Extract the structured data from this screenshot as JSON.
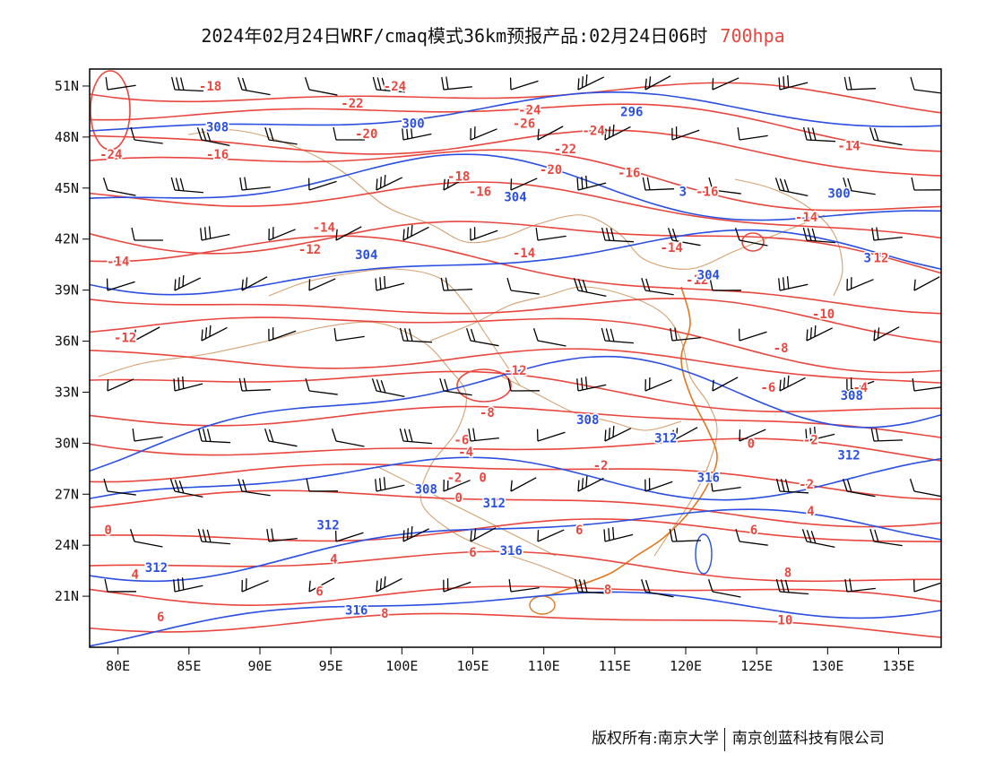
{
  "title": {
    "main": "2024年02月24日WRF/cmaq模式36km预报产品:02月24日06时",
    "level": "700hpa"
  },
  "axes": {
    "x_ticks": [
      "80E",
      "85E",
      "90E",
      "95E",
      "100E",
      "105E",
      "110E",
      "115E",
      "120E",
      "125E",
      "130E",
      "135E"
    ],
    "y_ticks": [
      "21N",
      "24N",
      "27N",
      "30N",
      "33N",
      "36N",
      "39N",
      "42N",
      "45N",
      "48N",
      "51N"
    ],
    "lon_range": [
      78,
      138
    ],
    "lat_range": [
      18,
      52
    ]
  },
  "colors": {
    "temperature": "#e8473f",
    "height": "#2b4fe0",
    "boundary": "#d4a070",
    "coast": "#e07820",
    "barb": "#000000",
    "frame": "#000000"
  },
  "temperature_labels": [
    {
      "lon": 86.5,
      "lat": 51.0,
      "text": "-18"
    },
    {
      "lon": 96.5,
      "lat": 50.0,
      "text": "-22"
    },
    {
      "lon": 99.5,
      "lat": 51.0,
      "text": "-24"
    },
    {
      "lon": 79.5,
      "lat": 47.0,
      "text": "-24"
    },
    {
      "lon": 87.0,
      "lat": 47.0,
      "text": "-16"
    },
    {
      "lon": 97.5,
      "lat": 48.2,
      "text": "-20"
    },
    {
      "lon": 109.0,
      "lat": 49.6,
      "text": "-24"
    },
    {
      "lon": 108.6,
      "lat": 48.8,
      "text": "-26"
    },
    {
      "lon": 113.5,
      "lat": 48.4,
      "text": "-24"
    },
    {
      "lon": 111.5,
      "lat": 47.3,
      "text": "-22"
    },
    {
      "lon": 110.5,
      "lat": 46.1,
      "text": "-20"
    },
    {
      "lon": 104.0,
      "lat": 45.7,
      "text": "-18"
    },
    {
      "lon": 116.0,
      "lat": 45.9,
      "text": "-16"
    },
    {
      "lon": 105.5,
      "lat": 44.8,
      "text": "-16"
    },
    {
      "lon": 121.5,
      "lat": 44.8,
      "text": "-16"
    },
    {
      "lon": 131.5,
      "lat": 47.5,
      "text": "-14"
    },
    {
      "lon": 128.5,
      "lat": 43.3,
      "text": "-14"
    },
    {
      "lon": 94.5,
      "lat": 42.7,
      "text": "-14"
    },
    {
      "lon": 108.6,
      "lat": 41.2,
      "text": "-14"
    },
    {
      "lon": 119.0,
      "lat": 41.5,
      "text": "-14"
    },
    {
      "lon": 93.5,
      "lat": 41.4,
      "text": "-12"
    },
    {
      "lon": 80.0,
      "lat": 40.7,
      "text": "-14"
    },
    {
      "lon": 120.8,
      "lat": 39.6,
      "text": "-12"
    },
    {
      "lon": 133.5,
      "lat": 40.9,
      "text": "-12"
    },
    {
      "lon": 80.5,
      "lat": 36.2,
      "text": "-12"
    },
    {
      "lon": 108.0,
      "lat": 34.3,
      "text": "-12"
    },
    {
      "lon": 129.7,
      "lat": 37.6,
      "text": "-10"
    },
    {
      "lon": 126.7,
      "lat": 35.6,
      "text": "-8"
    },
    {
      "lon": 106.0,
      "lat": 31.8,
      "text": "-8"
    },
    {
      "lon": 125.8,
      "lat": 33.3,
      "text": "-6"
    },
    {
      "lon": 132.3,
      "lat": 33.3,
      "text": "-4"
    },
    {
      "lon": 104.2,
      "lat": 30.2,
      "text": "-6"
    },
    {
      "lon": 104.5,
      "lat": 29.5,
      "text": "-4"
    },
    {
      "lon": 128.8,
      "lat": 30.2,
      "text": "-2"
    },
    {
      "lon": 103.7,
      "lat": 28.0,
      "text": "-2"
    },
    {
      "lon": 105.7,
      "lat": 28.0,
      "text": "0"
    },
    {
      "lon": 124.6,
      "lat": 30.0,
      "text": "0"
    },
    {
      "lon": 114.0,
      "lat": 28.7,
      "text": "-2"
    },
    {
      "lon": 128.5,
      "lat": 27.6,
      "text": "-2"
    },
    {
      "lon": 104.0,
      "lat": 26.8,
      "text": "0"
    },
    {
      "lon": 79.3,
      "lat": 24.9,
      "text": "0"
    },
    {
      "lon": 128.8,
      "lat": 26.0,
      "text": "4"
    },
    {
      "lon": 124.8,
      "lat": 24.9,
      "text": "6"
    },
    {
      "lon": 112.5,
      "lat": 24.9,
      "text": "6"
    },
    {
      "lon": 95.2,
      "lat": 23.2,
      "text": "4"
    },
    {
      "lon": 105.0,
      "lat": 23.6,
      "text": "6"
    },
    {
      "lon": 81.2,
      "lat": 22.3,
      "text": "4"
    },
    {
      "lon": 94.2,
      "lat": 21.3,
      "text": "6"
    },
    {
      "lon": 114.5,
      "lat": 21.4,
      "text": "8"
    },
    {
      "lon": 127.2,
      "lat": 22.4,
      "text": "8"
    },
    {
      "lon": 98.8,
      "lat": 20.0,
      "text": "8"
    },
    {
      "lon": 83.0,
      "lat": 19.8,
      "text": "6"
    },
    {
      "lon": 127.0,
      "lat": 19.6,
      "text": "10"
    }
  ],
  "height_labels": [
    {
      "lon": 87.0,
      "lat": 48.6,
      "text": "308"
    },
    {
      "lon": 100.8,
      "lat": 48.8,
      "text": "300"
    },
    {
      "lon": 116.2,
      "lat": 49.5,
      "text": "296"
    },
    {
      "lon": 108.0,
      "lat": 44.5,
      "text": "304"
    },
    {
      "lon": 119.8,
      "lat": 44.8,
      "text": "3"
    },
    {
      "lon": 130.8,
      "lat": 44.7,
      "text": "300"
    },
    {
      "lon": 97.5,
      "lat": 41.1,
      "text": "304"
    },
    {
      "lon": 121.6,
      "lat": 39.9,
      "text": "304"
    },
    {
      "lon": 132.8,
      "lat": 40.9,
      "text": "3"
    },
    {
      "lon": 131.7,
      "lat": 32.8,
      "text": "308"
    },
    {
      "lon": 113.1,
      "lat": 31.4,
      "text": "308"
    },
    {
      "lon": 118.6,
      "lat": 30.3,
      "text": "312"
    },
    {
      "lon": 131.5,
      "lat": 29.3,
      "text": "312"
    },
    {
      "lon": 121.6,
      "lat": 28.0,
      "text": "316"
    },
    {
      "lon": 101.7,
      "lat": 27.3,
      "text": "308"
    },
    {
      "lon": 106.5,
      "lat": 26.5,
      "text": "312"
    },
    {
      "lon": 94.8,
      "lat": 25.2,
      "text": "312"
    },
    {
      "lon": 107.7,
      "lat": 23.7,
      "text": "316"
    },
    {
      "lon": 82.7,
      "lat": 22.7,
      "text": "312"
    },
    {
      "lon": 96.8,
      "lat": 20.2,
      "text": "316"
    }
  ],
  "footer": {
    "left": "版权所有:南京大学",
    "right": "南京创蓝科技有限公司"
  }
}
